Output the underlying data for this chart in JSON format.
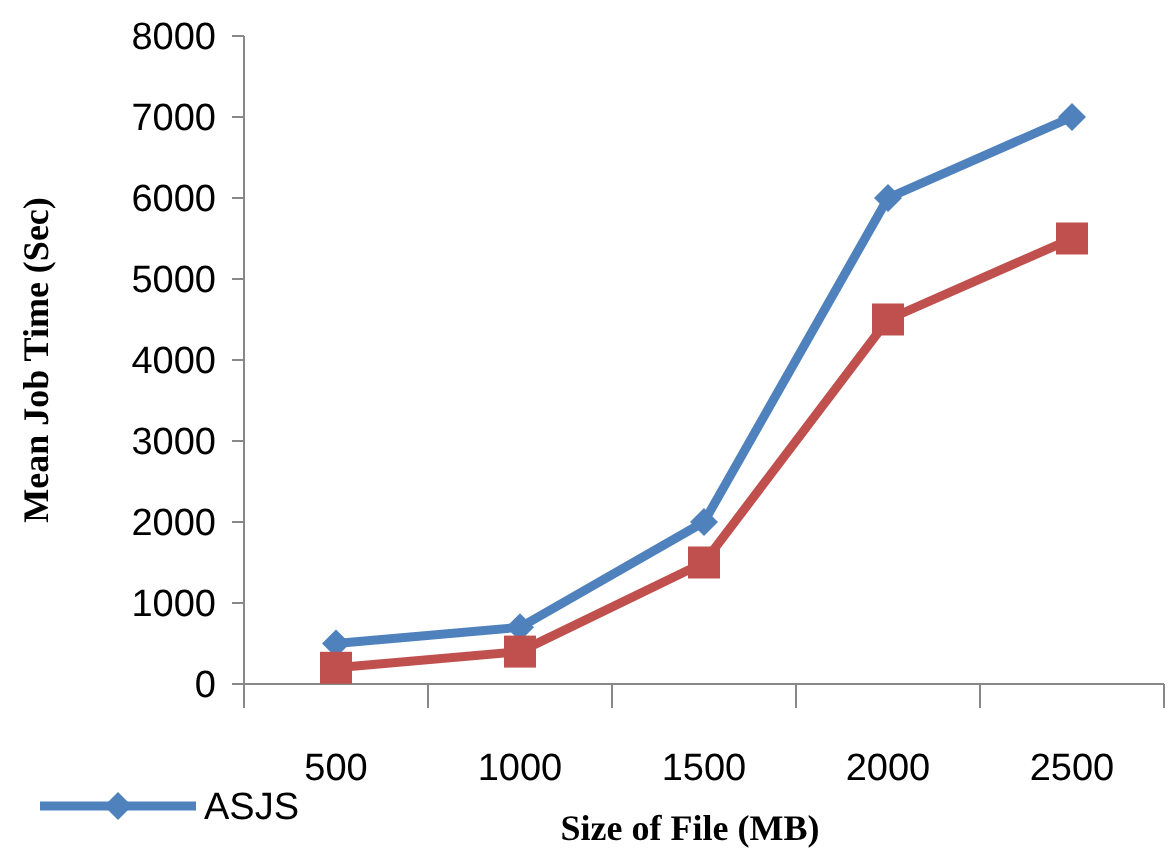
{
  "chart_data": {
    "type": "line",
    "xlabel": "Size of File (MB)",
    "ylabel": "Mean Job Time (Sec)",
    "categories": [
      "500",
      "1000",
      "1500",
      "2000",
      "2500"
    ],
    "series": [
      {
        "name": "ASJS",
        "color": "#4f81bd",
        "marker": "diamond",
        "values": [
          500,
          700,
          2000,
          6000,
          7000
        ]
      },
      {
        "color": "#c0504d",
        "marker": "square",
        "values": [
          200,
          400,
          1500,
          4500,
          5500
        ]
      }
    ],
    "ylim": [
      0,
      8000
    ],
    "yticks": [
      0,
      1000,
      2000,
      3000,
      4000,
      5000,
      6000,
      7000,
      8000
    ],
    "legend": "bottom left"
  }
}
